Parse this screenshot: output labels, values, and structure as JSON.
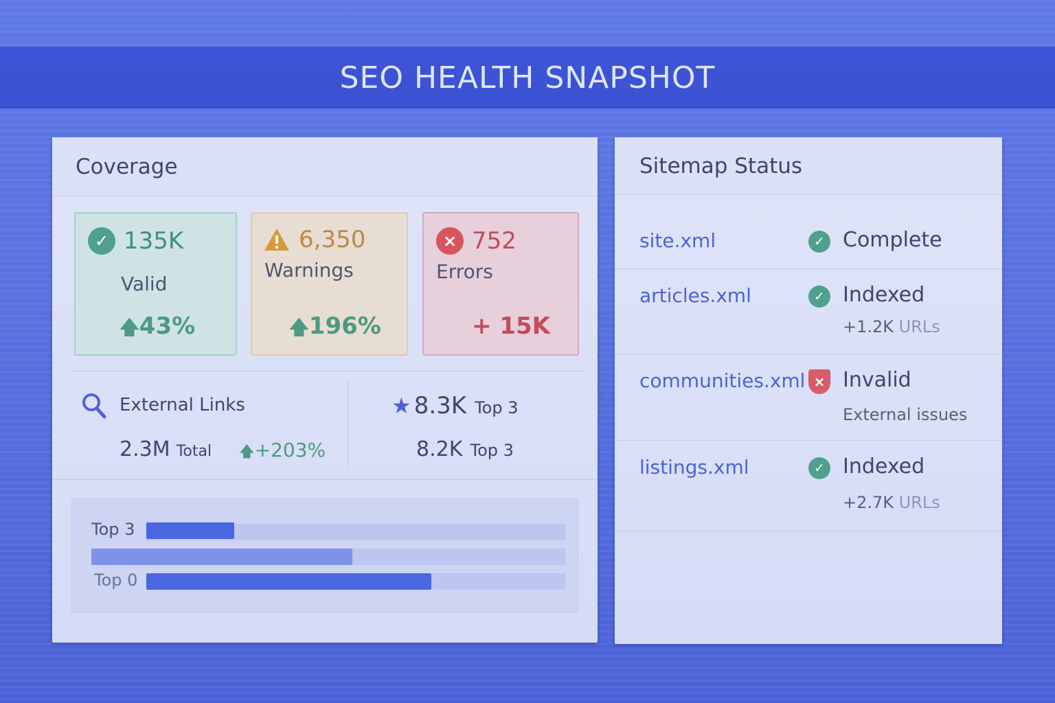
{
  "header": {
    "title": "SEO HEALTH SNAPSHOT"
  },
  "coverage": {
    "title": "Coverage",
    "cards": {
      "valid": {
        "value": "135K",
        "label": "Valid",
        "delta": "43%",
        "icon": "check-circle-icon",
        "color": "#4fa08c"
      },
      "warnings": {
        "value": "6,350",
        "label": "Warnings",
        "delta": "196%",
        "icon": "warning-triangle-icon",
        "color": "#d59a3b"
      },
      "errors": {
        "value": "752",
        "label": "Errors",
        "delta": "+ 15K",
        "icon": "error-circle-icon",
        "color": "#d8545f"
      }
    },
    "external_links": {
      "label": "External Links",
      "total_value": "2.3M",
      "total_suffix": "Total",
      "growth": "+203%",
      "top_value_1": "8.3K",
      "top_suffix_1": "Top 3",
      "top_value_2": "8.2K",
      "top_suffix_2": "Top 3"
    },
    "bars": {
      "label_1": "Top 3",
      "label_2": "Top 0",
      "fill_1": 0.21,
      "fill_middle": 0.55,
      "fill_2": 0.68
    }
  },
  "sitemap": {
    "title": "Sitemap Status",
    "rows": [
      {
        "file": "site.xml",
        "status": "Complete",
        "sub_value": "",
        "sub_suffix": "",
        "state": "ok"
      },
      {
        "file": "articles.xml",
        "status": "Indexed",
        "sub_value": "+1.2K",
        "sub_suffix": "URLs",
        "state": "ok"
      },
      {
        "file": "communities.xml",
        "status": "Invalid",
        "sub_value": "External issues",
        "sub_suffix": "",
        "state": "error"
      },
      {
        "file": "listings.xml",
        "status": "Indexed",
        "sub_value": "+2.7K",
        "sub_suffix": "URLs",
        "state": "ok"
      }
    ]
  }
}
